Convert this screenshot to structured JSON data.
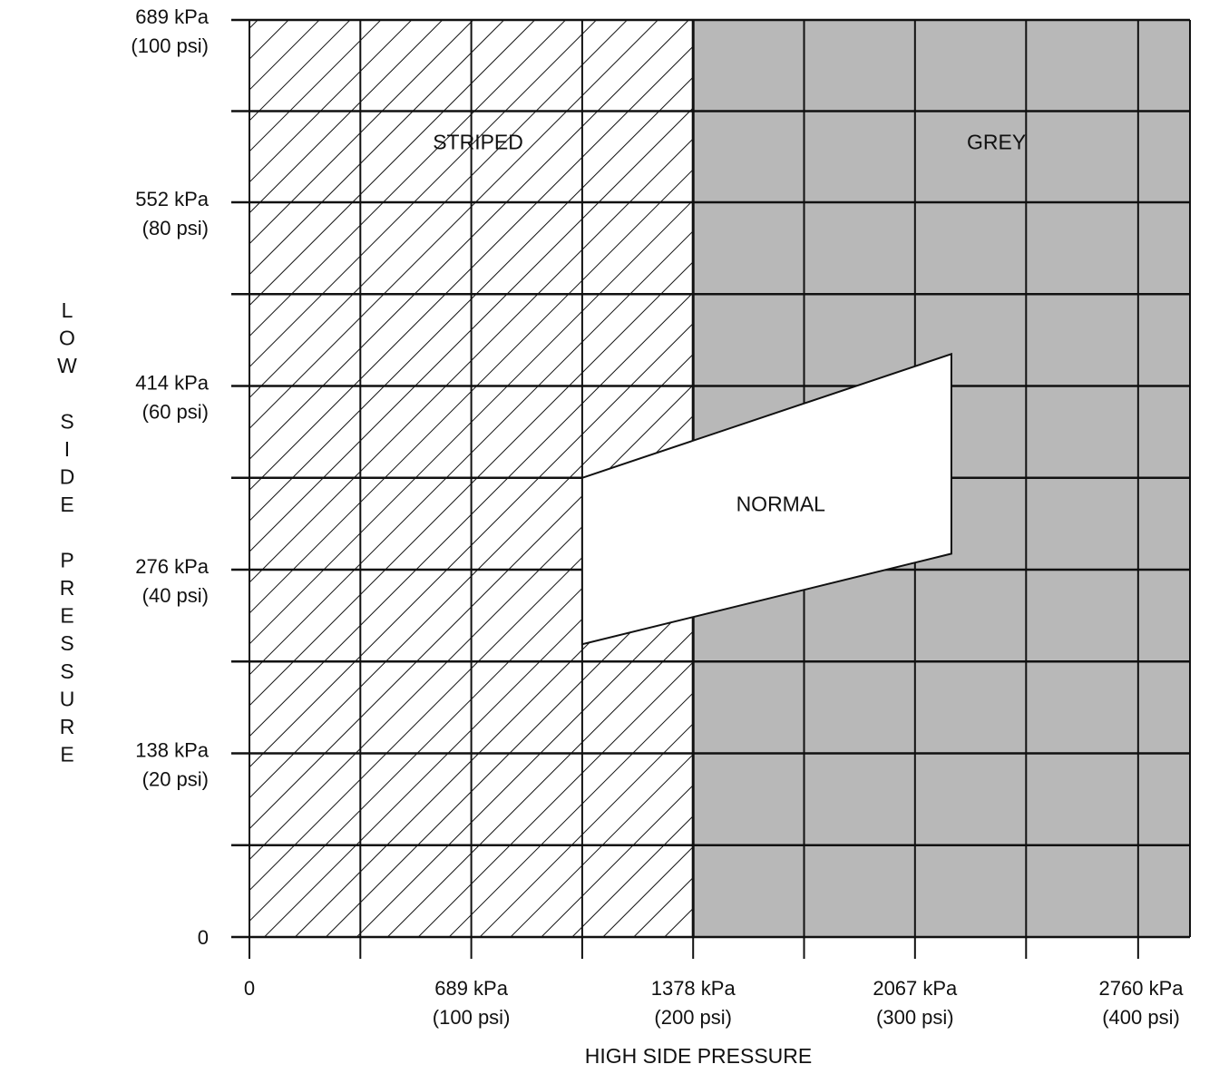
{
  "chart_data": {
    "type": "area",
    "xlabel": "HIGH SIDE PRESSURE",
    "ylabel": "LOW SIDE PRESSURE",
    "x_units": "kPa",
    "y_units": "kPa",
    "xlim": [
      0,
      2921
    ],
    "ylim": [
      0,
      689
    ],
    "grid": true,
    "x_ticks": [
      {
        "value": 0,
        "line1": "0",
        "line2": ""
      },
      {
        "value": 689,
        "line1": "689 kPa",
        "line2": "(100 psi)"
      },
      {
        "value": 1378,
        "line1": "1378 kPa",
        "line2": "(200 psi)"
      },
      {
        "value": 2067,
        "line1": "2067 kPa",
        "line2": "(300 psi)"
      },
      {
        "value": 2760,
        "line1": "2760 kPa",
        "line2": "(400 psi)"
      }
    ],
    "x_minor_ticks": [
      344.5,
      1033.5,
      1722.5,
      2412
    ],
    "y_ticks": [
      {
        "value": 0,
        "line1": "0",
        "line2": ""
      },
      {
        "value": 138,
        "line1": "138 kPa",
        "line2": "(20 psi)"
      },
      {
        "value": 276,
        "line1": "276 kPa",
        "line2": "(40 psi)"
      },
      {
        "value": 414,
        "line1": "414 kPa",
        "line2": "(60 psi)"
      },
      {
        "value": 552,
        "line1": "552 kPa",
        "line2": "(80 psi)"
      },
      {
        "value": 689,
        "line1": "689 kPa",
        "line2": "(100 psi)"
      }
    ],
    "y_minor_ticks": [
      69,
      207,
      345,
      483,
      620.5
    ],
    "regions": [
      {
        "name": "STRIPED",
        "fill": "hatched",
        "x_range": [
          0,
          1378
        ],
        "y_range": [
          0,
          689
        ],
        "label_at": [
          710,
          592
        ]
      },
      {
        "name": "GREY",
        "fill": "#b8b8b8",
        "x_range": [
          1378,
          2921
        ],
        "y_range": [
          0,
          689
        ],
        "label_at": [
          2320,
          592
        ]
      },
      {
        "name": "NORMAL",
        "fill": "#ffffff",
        "polygon": [
          [
            1033.5,
            345
          ],
          [
            2180,
            438
          ],
          [
            2180,
            288
          ],
          [
            1033.5,
            220
          ]
        ],
        "label_at": [
          1650,
          320
        ]
      }
    ]
  }
}
